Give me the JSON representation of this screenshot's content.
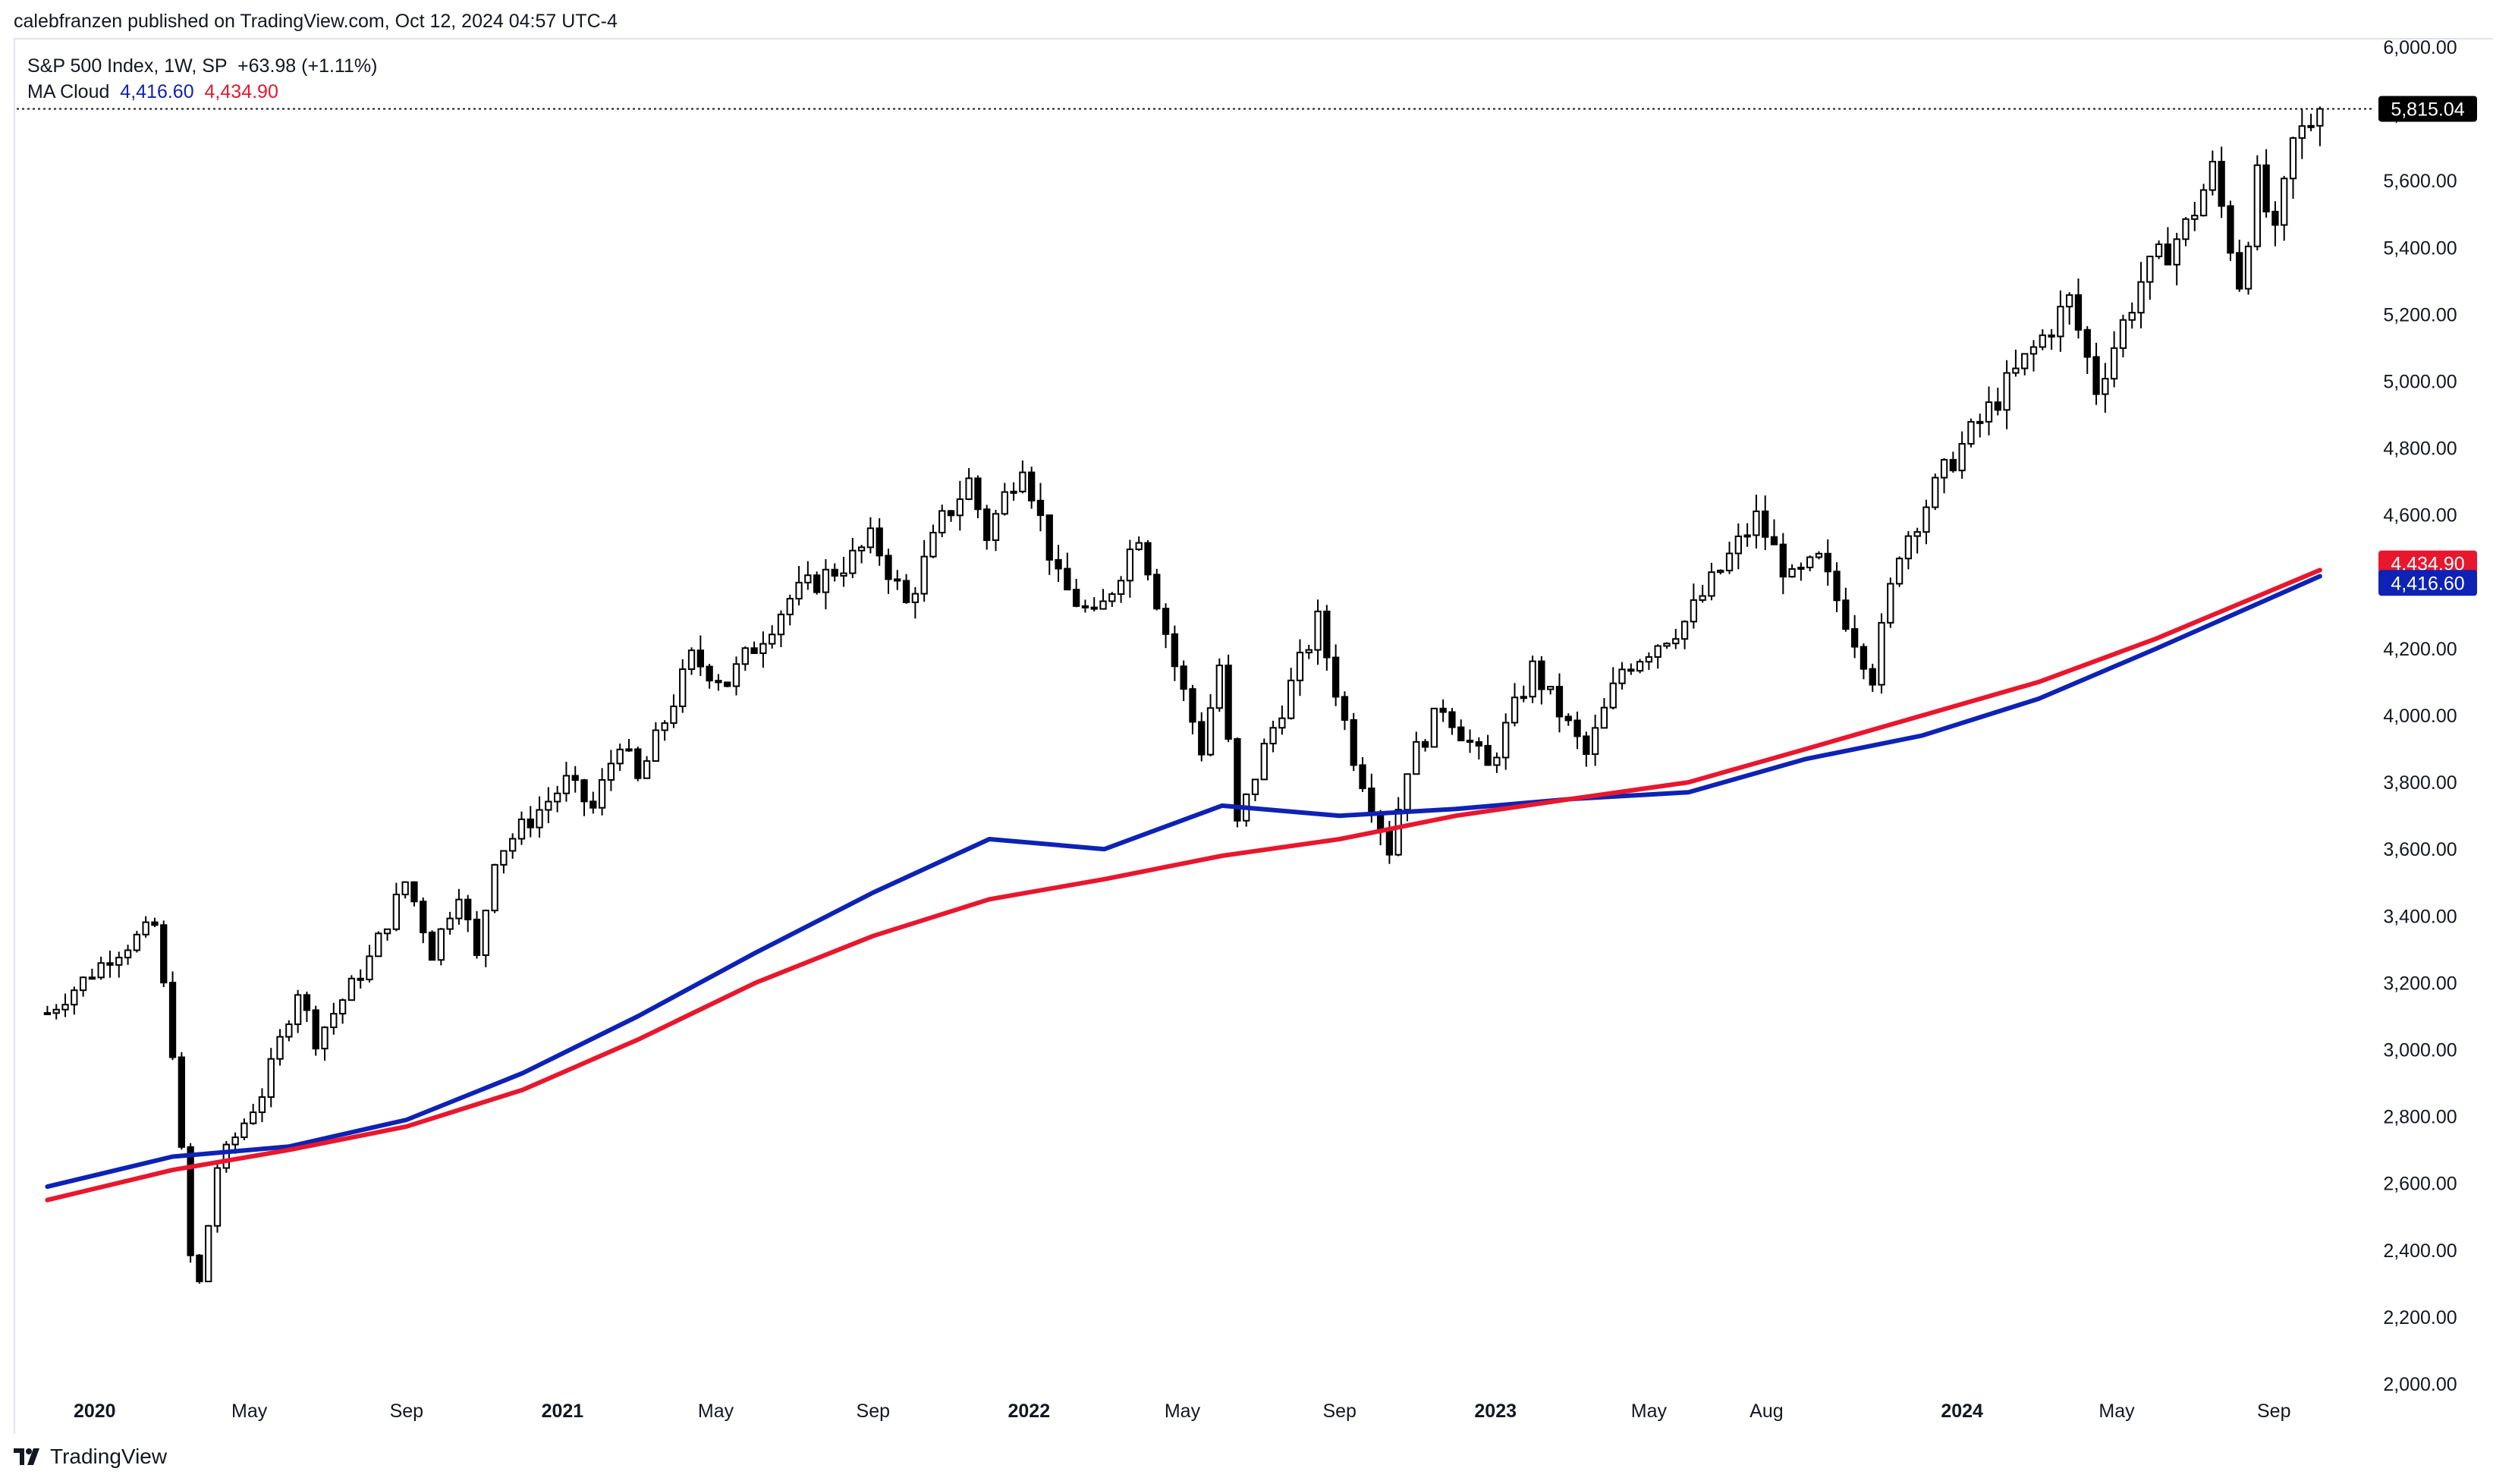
{
  "publisher_line": "calebfranzen published on TradingView.com, Oct 12, 2024 04:57 UTC-4",
  "legend": {
    "symbol": "S&P 500 Index, 1W, SP",
    "change": "+63.98 (+1.11%)",
    "indicator": "MA Cloud",
    "ma_fast_value": "4,416.60",
    "ma_slow_value": "4,434.90"
  },
  "footer": {
    "brand": "TradingView"
  },
  "colors": {
    "up_candle": "#ffffff",
    "down_candle": "#000000",
    "ma_fast": "#0e22b5",
    "ma_slow": "#e8172e",
    "last_price_label": "#000000"
  },
  "price_labels": {
    "last": "5,815.04",
    "ma_slow": "4,434.90",
    "ma_fast": "4,416.60"
  },
  "chart_data": {
    "type": "candlestick",
    "timeframe": "1W",
    "ylim": [
      2000,
      6000
    ],
    "y_ticks": [
      "2,000.00",
      "2,200.00",
      "2,400.00",
      "2,600.00",
      "2,800.00",
      "3,000.00",
      "3,200.00",
      "3,400.00",
      "3,600.00",
      "3,800.00",
      "4,000.00",
      "4,200.00",
      "4,400.00",
      "4,600.00",
      "4,800.00",
      "5,000.00",
      "5,200.00",
      "5,400.00",
      "5,600.00",
      "5,800.00",
      "6,000.00"
    ],
    "x_ticks": [
      {
        "label": "2020",
        "date": "2020-01",
        "bold": true
      },
      {
        "label": "May",
        "date": "2020-05",
        "bold": false
      },
      {
        "label": "Sep",
        "date": "2020-09",
        "bold": false
      },
      {
        "label": "2021",
        "date": "2021-01",
        "bold": true
      },
      {
        "label": "May",
        "date": "2021-05",
        "bold": false
      },
      {
        "label": "Sep",
        "date": "2021-09",
        "bold": false
      },
      {
        "label": "2022",
        "date": "2022-01",
        "bold": true
      },
      {
        "label": "May",
        "date": "2022-05",
        "bold": false
      },
      {
        "label": "Sep",
        "date": "2022-09",
        "bold": false
      },
      {
        "label": "2023",
        "date": "2023-01",
        "bold": true
      },
      {
        "label": "May",
        "date": "2023-05",
        "bold": false
      },
      {
        "label": "Aug",
        "date": "2023-08",
        "bold": false
      },
      {
        "label": "2024",
        "date": "2024-01",
        "bold": true
      },
      {
        "label": "May",
        "date": "2024-05",
        "bold": false
      },
      {
        "label": "Sep",
        "date": "2024-09",
        "bold": false
      }
    ],
    "x_range": [
      "2019-11",
      "2024-11"
    ],
    "last_price": 5815.04,
    "price_anchors": [
      [
        "2019-11-25",
        3110
      ],
      [
        "2020-01-13",
        3280
      ],
      [
        "2020-02-17",
        3370
      ],
      [
        "2020-03-02",
        3000
      ],
      [
        "2020-03-16",
        2380
      ],
      [
        "2020-03-23",
        2300
      ],
      [
        "2020-04-06",
        2650
      ],
      [
        "2020-05-11",
        2870
      ],
      [
        "2020-06-08",
        3180
      ],
      [
        "2020-06-22",
        3030
      ],
      [
        "2020-08-03",
        3270
      ],
      [
        "2020-09-01",
        3510
      ],
      [
        "2020-09-21",
        3290
      ],
      [
        "2020-10-12",
        3480
      ],
      [
        "2020-10-26",
        3270
      ],
      [
        "2020-11-09",
        3580
      ],
      [
        "2021-01-04",
        3800
      ],
      [
        "2021-01-25",
        3720
      ],
      [
        "2021-02-15",
        3930
      ],
      [
        "2021-03-01",
        3800
      ],
      [
        "2021-04-12",
        4170
      ],
      [
        "2021-05-10",
        4100
      ],
      [
        "2021-06-28",
        4350
      ],
      [
        "2021-08-16",
        4470
      ],
      [
        "2021-09-01",
        4530
      ],
      [
        "2021-09-27",
        4330
      ],
      [
        "2021-10-25",
        4580
      ],
      [
        "2021-11-15",
        4700
      ],
      [
        "2021-11-29",
        4540
      ],
      [
        "2021-12-27",
        4770
      ],
      [
        "2022-01-24",
        4400
      ],
      [
        "2022-02-22",
        4280
      ],
      [
        "2022-03-28",
        4550
      ],
      [
        "2022-04-25",
        4150
      ],
      [
        "2022-05-16",
        3900
      ],
      [
        "2022-05-30",
        4150
      ],
      [
        "2022-06-13",
        3670
      ],
      [
        "2022-07-04",
        3900
      ],
      [
        "2022-08-15",
        4280
      ],
      [
        "2022-09-12",
        3880
      ],
      [
        "2022-10-10",
        3600
      ],
      [
        "2022-10-24",
        3850
      ],
      [
        "2022-11-21",
        4030
      ],
      [
        "2022-12-26",
        3840
      ],
      [
        "2023-01-30",
        4140
      ],
      [
        "2023-03-13",
        3880
      ],
      [
        "2023-04-10",
        4140
      ],
      [
        "2023-05-29",
        4280
      ],
      [
        "2023-07-24",
        4590
      ],
      [
        "2023-08-21",
        4400
      ],
      [
        "2023-09-11",
        4460
      ],
      [
        "2023-10-23",
        4120
      ],
      [
        "2023-11-13",
        4500
      ],
      [
        "2023-12-25",
        4770
      ],
      [
        "2024-01-29",
        4950
      ],
      [
        "2024-03-25",
        5240
      ],
      [
        "2024-04-15",
        4980
      ],
      [
        "2024-05-20",
        5300
      ],
      [
        "2024-06-24",
        5460
      ],
      [
        "2024-07-15",
        5630
      ],
      [
        "2024-08-05",
        5300
      ],
      [
        "2024-08-19",
        5600
      ],
      [
        "2024-09-02",
        5420
      ],
      [
        "2024-09-16",
        5710
      ],
      [
        "2024-10-07",
        5815
      ]
    ],
    "ma_fast": {
      "name": "MA Cloud",
      "color": "#0e22b5",
      "last": 4416.6,
      "points": [
        [
          "2019-11-25",
          2590
        ],
        [
          "2020-03-02",
          2680
        ],
        [
          "2020-06-01",
          2710
        ],
        [
          "2020-09-01",
          2790
        ],
        [
          "2020-12-01",
          2930
        ],
        [
          "2021-03-01",
          3100
        ],
        [
          "2021-06-01",
          3290
        ],
        [
          "2021-09-01",
          3470
        ],
        [
          "2021-12-01",
          3630
        ],
        [
          "2022-03-01",
          3600
        ],
        [
          "2022-06-01",
          3730
        ],
        [
          "2022-09-01",
          3700
        ],
        [
          "2022-12-01",
          3720
        ],
        [
          "2023-03-01",
          3750
        ],
        [
          "2023-06-01",
          3770
        ],
        [
          "2023-09-01",
          3870
        ],
        [
          "2023-12-01",
          3940
        ],
        [
          "2024-03-01",
          4050
        ],
        [
          "2024-06-01",
          4200
        ],
        [
          "2024-10-07",
          4416.6
        ]
      ]
    },
    "ma_slow": {
      "name": "MA Cloud",
      "color": "#e8172e",
      "last": 4434.9,
      "points": [
        [
          "2019-11-25",
          2550
        ],
        [
          "2020-03-02",
          2640
        ],
        [
          "2020-06-01",
          2700
        ],
        [
          "2020-09-01",
          2770
        ],
        [
          "2020-12-01",
          2880
        ],
        [
          "2021-03-01",
          3030
        ],
        [
          "2021-06-01",
          3200
        ],
        [
          "2021-09-01",
          3340
        ],
        [
          "2021-12-01",
          3450
        ],
        [
          "2022-03-01",
          3510
        ],
        [
          "2022-06-01",
          3580
        ],
        [
          "2022-09-01",
          3630
        ],
        [
          "2022-12-01",
          3700
        ],
        [
          "2023-03-01",
          3750
        ],
        [
          "2023-06-01",
          3800
        ],
        [
          "2023-09-01",
          3900
        ],
        [
          "2023-12-01",
          4000
        ],
        [
          "2024-03-01",
          4100
        ],
        [
          "2024-06-01",
          4230
        ],
        [
          "2024-10-07",
          4434.9
        ]
      ]
    }
  }
}
